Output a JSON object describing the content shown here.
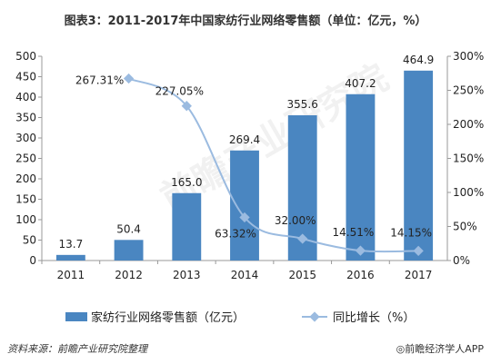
{
  "title": "图表3：2011-2017年中国家纺行业网络零售额（单位：亿元，%）",
  "source": "资料来源：前瞻产业研究院整理",
  "brand": "◎前瞻经济学人APP",
  "watermark": "前瞻产业研究院",
  "colors": {
    "bar": "#4a86c1",
    "line": "#9bbbe0",
    "axis": "#999999",
    "text": "#222222"
  },
  "chart_data": {
    "type": "bar",
    "categories": [
      "2011",
      "2012",
      "2013",
      "2014",
      "2015",
      "2016",
      "2017"
    ],
    "series": [
      {
        "name": "家纺行业网络零售额（亿元）",
        "type": "bar",
        "axis": "left",
        "values": [
          13.7,
          50.4,
          165.0,
          269.4,
          355.6,
          407.2,
          464.9
        ],
        "labels": [
          "13.7",
          "50.4",
          "165.0",
          "269.4",
          "355.6",
          "407.2",
          "464.9"
        ]
      },
      {
        "name": "同比增长（%）",
        "type": "line",
        "axis": "right",
        "x": [
          "2012",
          "2013",
          "2014",
          "2015",
          "2016",
          "2017"
        ],
        "values": [
          267.31,
          227.05,
          63.32,
          32.0,
          14.51,
          14.15
        ],
        "labels": [
          "267.31%",
          "227.05%",
          "63.32%",
          "32.00%",
          "14.51%",
          "14.15%"
        ]
      }
    ],
    "y_left": {
      "min": 0,
      "max": 500,
      "ticks": [
        "0",
        "50",
        "100",
        "150",
        "200",
        "250",
        "300",
        "350",
        "400",
        "450",
        "500"
      ]
    },
    "y_right": {
      "min": 0,
      "max": 300,
      "ticks": [
        "0%",
        "50%",
        "100%",
        "150%",
        "200%",
        "250%",
        "300%"
      ]
    },
    "legend": {
      "position": "bottom"
    },
    "grid": false
  }
}
